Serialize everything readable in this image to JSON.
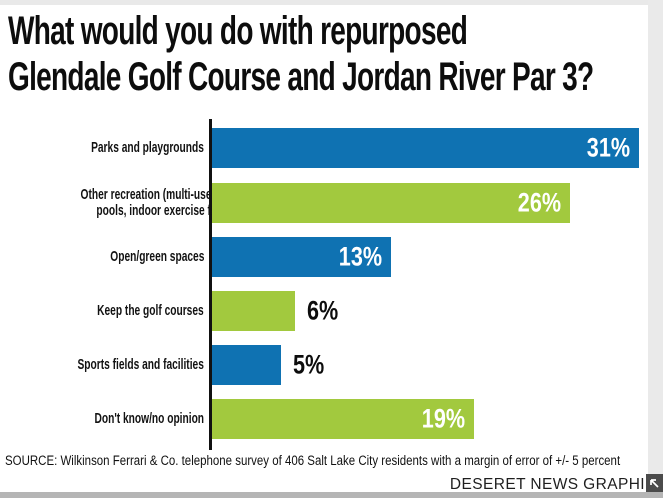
{
  "title": {
    "line1": "What would you do with repurposed",
    "line2": "Glendale Golf Course and Jordan River Par 3?"
  },
  "chart_data": {
    "type": "bar",
    "orientation": "horizontal",
    "title": "What would you do with repurposed Glendale Golf Course and Jordan River Par 3?",
    "xlabel": "",
    "ylabel": "",
    "xmax": 31,
    "grid": false,
    "legend": "none",
    "palette": {
      "blue": "#0f72b2",
      "green": "#a2c93e"
    },
    "categories": [
      "Parks and playgrounds",
      "Other recreation (multi-use spaces, pools, indoor exercise facilities)",
      "Open/green spaces",
      "Keep the golf courses",
      "Sports fields and facilities",
      "Don't know/no opinion"
    ],
    "values": [
      31,
      26,
      13,
      6,
      5,
      19
    ],
    "bars": [
      {
        "label_lines": [
          "Parks and playgrounds"
        ],
        "value": 31,
        "display": "31%",
        "color": "blue",
        "value_inside": true
      },
      {
        "label_lines": [
          "Other recreation (multi-use spaces,",
          "pools, indoor exercise facilities)"
        ],
        "value": 26,
        "display": "26%",
        "color": "green",
        "value_inside": true
      },
      {
        "label_lines": [
          "Open/green spaces"
        ],
        "value": 13,
        "display": "13%",
        "color": "blue",
        "value_inside": true
      },
      {
        "label_lines": [
          "Keep the golf courses"
        ],
        "value": 6,
        "display": "6%",
        "color": "green",
        "value_inside": false
      },
      {
        "label_lines": [
          "Sports fields and facilities"
        ],
        "value": 5,
        "display": "5%",
        "color": "blue",
        "value_inside": false
      },
      {
        "label_lines": [
          "Don't know/no opinion"
        ],
        "value": 19,
        "display": "19%",
        "color": "green",
        "value_inside": true
      }
    ]
  },
  "source": "SOURCE: Wilkinson Ferrari & Co. telephone survey of 406 Salt Lake City residents with a margin of error of +/- 5 percent",
  "credit": "DESERET NEWS GRAPHI",
  "colors": {
    "bar_blue": "#0f72b2",
    "bar_green": "#a2c93e",
    "axis_black": "#111111",
    "value_label_inside": "#ffffff",
    "value_label_outside": "#0d0d0d",
    "corner_icon_bg": "#4b4b4b"
  }
}
